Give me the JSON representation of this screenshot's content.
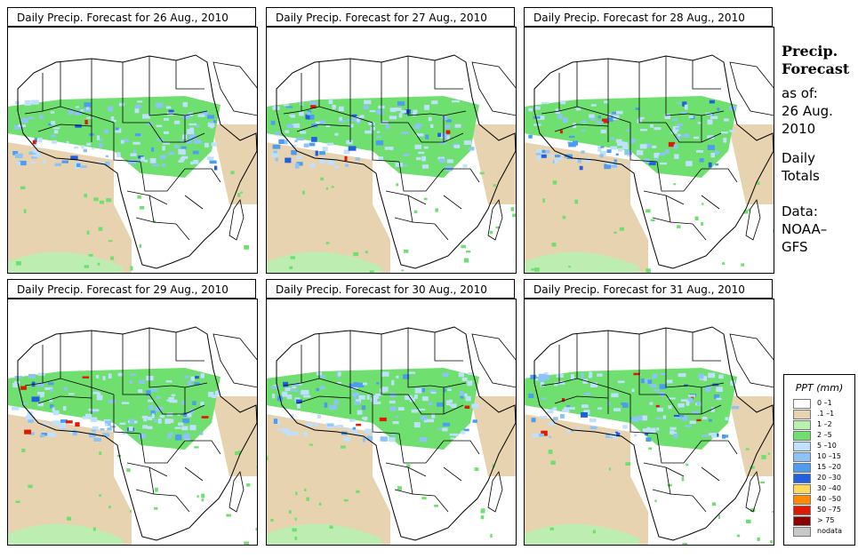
{
  "panels": [
    {
      "title": "Daily Precip. Forecast for  26 Aug., 2010",
      "seed": 11
    },
    {
      "title": "Daily Precip. Forecast for  27 Aug., 2010",
      "seed": 23
    },
    {
      "title": "Daily Precip. Forecast for  28 Aug., 2010",
      "seed": 37
    },
    {
      "title": "Daily Precip. Forecast for  29 Aug., 2010",
      "seed": 41
    },
    {
      "title": "Daily Precip. Forecast for  30 Aug., 2010",
      "seed": 53
    },
    {
      "title": "Daily Precip. Forecast for  31 Aug., 2010",
      "seed": 67
    }
  ],
  "sidebar": {
    "title_line1": "Precip.",
    "title_line2": "Forecast",
    "asof_line1": "as of:",
    "asof_line2": "26 Aug.",
    "asof_line3": "2010",
    "daily_line1": "Daily",
    "daily_line2": "Totals",
    "data_line1": "Data:",
    "data_line2": "NOAA–",
    "data_line3": "GFS"
  },
  "legend": {
    "title": "PPT (mm)",
    "items": [
      {
        "label": "0 –1",
        "color": "#ffffff"
      },
      {
        "label": ".1 –1",
        "color": "#e8d3b0"
      },
      {
        "label": "1 –2",
        "color": "#b8f0b0"
      },
      {
        "label": "2 –5",
        "color": "#6fe06f"
      },
      {
        "label": "5 –10",
        "color": "#bfe0ff"
      },
      {
        "label": "10 –15",
        "color": "#8cc4f8"
      },
      {
        "label": "15 –20",
        "color": "#4d9cf0"
      },
      {
        "label": "20 –30",
        "color": "#1f5fe0"
      },
      {
        "label": "30 –40",
        "color": "#ffd860"
      },
      {
        "label": "40 –50",
        "color": "#ff8c00"
      },
      {
        "label": "50 –75",
        "color": "#e01a00"
      },
      {
        "label": "> 75",
        "color": "#8b0000"
      },
      {
        "label": "nodata",
        "color": "#c8c8c8"
      }
    ]
  }
}
